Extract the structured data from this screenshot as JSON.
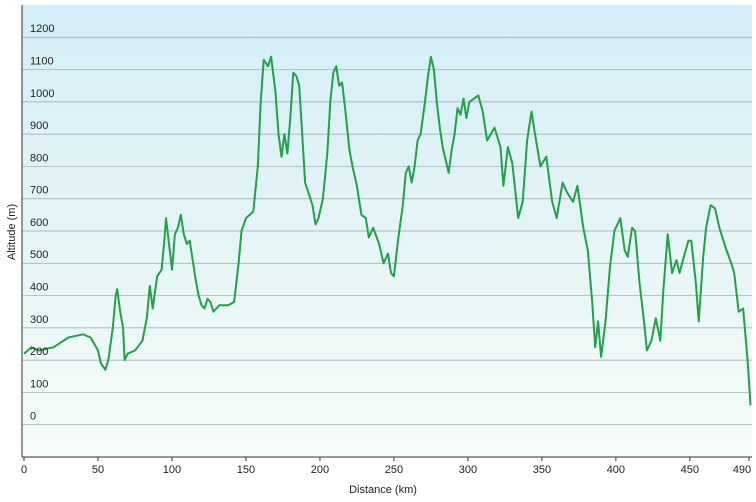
{
  "chart_data": {
    "type": "line",
    "xlabel": "Distance  (km)",
    "ylabel": "Altitude (m)",
    "xlim": [
      0,
      492
    ],
    "ylim": [
      -100,
      1300
    ],
    "xticks": [
      0,
      50,
      100,
      150,
      200,
      250,
      300,
      350,
      400,
      450,
      490
    ],
    "yticks": [
      0,
      100,
      200,
      300,
      400,
      500,
      600,
      700,
      800,
      900,
      1000,
      1100,
      1200
    ],
    "grid": true,
    "x": [
      0,
      5,
      10,
      20,
      30,
      40,
      45,
      50,
      52,
      55,
      57,
      60,
      62,
      63,
      65,
      67,
      68,
      70,
      75,
      80,
      83,
      85,
      87,
      90,
      93,
      95,
      96,
      98,
      100,
      102,
      104,
      106,
      108,
      110,
      112,
      114,
      116,
      118,
      120,
      122,
      124,
      126,
      128,
      132,
      138,
      142,
      145,
      147,
      150,
      155,
      158,
      160,
      162,
      165,
      167,
      170,
      172,
      174,
      176,
      178,
      180,
      182,
      184,
      186,
      188,
      190,
      195,
      197,
      199,
      202,
      205,
      207,
      209,
      211,
      213,
      215,
      217,
      220,
      222,
      225,
      228,
      231,
      233,
      236,
      240,
      243,
      246,
      248,
      250,
      253,
      256,
      258,
      260,
      262,
      264,
      266,
      268,
      271,
      273,
      275,
      277,
      279,
      281,
      283,
      285,
      287,
      289,
      291,
      293,
      295,
      297,
      299,
      301,
      307,
      310,
      313,
      318,
      322,
      324,
      327,
      330,
      334,
      337,
      340,
      343,
      345,
      349,
      353,
      357,
      360,
      364,
      367,
      371,
      374,
      378,
      381,
      384,
      386,
      388,
      390,
      393,
      396,
      399,
      403,
      406,
      408,
      411,
      413,
      416,
      419,
      421,
      424,
      427,
      430,
      432,
      435,
      438,
      441,
      443,
      446,
      449,
      451,
      454,
      456,
      459,
      461,
      464,
      467,
      470,
      474,
      478,
      480,
      483,
      486,
      489,
      491
    ],
    "series": [
      {
        "name": "Altitude",
        "color": "#22a04a",
        "values": [
          220,
          240,
          230,
          240,
          270,
          280,
          270,
          230,
          190,
          170,
          200,
          300,
          400,
          420,
          350,
          300,
          200,
          220,
          230,
          260,
          330,
          430,
          360,
          460,
          480,
          580,
          640,
          560,
          480,
          590,
          610,
          650,
          590,
          560,
          570,
          510,
          450,
          400,
          370,
          360,
          390,
          380,
          350,
          370,
          370,
          380,
          500,
          600,
          640,
          660,
          800,
          1000,
          1130,
          1110,
          1140,
          1030,
          900,
          830,
          900,
          840,
          950,
          1090,
          1080,
          1050,
          900,
          750,
          680,
          620,
          640,
          700,
          840,
          1000,
          1090,
          1110,
          1050,
          1060,
          980,
          850,
          800,
          740,
          650,
          640,
          580,
          610,
          560,
          500,
          530,
          470,
          460,
          580,
          680,
          780,
          800,
          750,
          800,
          880,
          900,
          1000,
          1080,
          1140,
          1100,
          1000,
          920,
          860,
          820,
          780,
          850,
          900,
          980,
          960,
          1010,
          950,
          1000,
          1020,
          970,
          880,
          920,
          860,
          740,
          860,
          810,
          640,
          690,
          880,
          970,
          910,
          800,
          830,
          690,
          640,
          750,
          720,
          690,
          740,
          610,
          540,
          380,
          240,
          320,
          210,
          320,
          490,
          600,
          640,
          540,
          520,
          610,
          600,
          440,
          320,
          230,
          260,
          330,
          260,
          410,
          590,
          470,
          510,
          470,
          520,
          570,
          570,
          440,
          320,
          520,
          610,
          680,
          670,
          610,
          550,
          500,
          470,
          350,
          360,
          200,
          60
        ]
      }
    ]
  }
}
